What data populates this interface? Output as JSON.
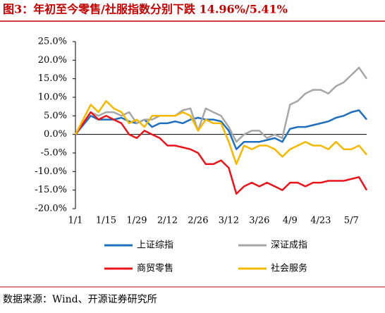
{
  "chart_data": {
    "type": "line",
    "title": "图3：年初至今零售/社服指数分别下跌 14.96%/5.41%",
    "source": "数据来源：Wind、开源证券研究所",
    "categories": [
      "1/1",
      null,
      null,
      null,
      "1/15",
      null,
      null,
      null,
      "1/29",
      null,
      null,
      null,
      "2/12",
      null,
      null,
      null,
      "2/26",
      null,
      null,
      null,
      "3/12",
      null,
      null,
      null,
      "3/26",
      null,
      null,
      null,
      "4/9",
      null,
      null,
      null,
      "4/23",
      null,
      null,
      null,
      "5/7",
      null,
      null
    ],
    "ylim": [
      -20,
      25
    ],
    "yticks": [
      {
        "value": -20,
        "label": "-20.0%"
      },
      {
        "value": -15,
        "label": "-15.0%"
      },
      {
        "value": -10,
        "label": "-10.0%"
      },
      {
        "value": -5,
        "label": "-5.0%"
      },
      {
        "value": 0,
        "label": "0.0%"
      },
      {
        "value": 5,
        "label": "5.0%"
      },
      {
        "value": 10,
        "label": "10.0%"
      },
      {
        "value": 15,
        "label": "15.0%"
      },
      {
        "value": 20,
        "label": "20.0%"
      },
      {
        "value": 25,
        "label": "25.0%"
      }
    ],
    "series": [
      {
        "name": "上证综指",
        "color": "#1f6fbf",
        "values": [
          0,
          2.5,
          5,
          4,
          4,
          4,
          4.5,
          3.5,
          3,
          4,
          2,
          3,
          3,
          3.5,
          3,
          4,
          4.5,
          4,
          4,
          3.5,
          1,
          -4,
          -2,
          -2,
          -2,
          -1.5,
          -1,
          -2,
          1.5,
          2,
          2,
          2.5,
          3,
          3.5,
          4.5,
          5,
          6,
          6.5,
          4
        ]
      },
      {
        "name": "深证成指",
        "color": "#a6a6a6",
        "values": [
          0,
          3,
          6,
          5,
          6,
          6,
          5,
          6,
          3,
          4,
          4,
          5,
          5,
          5,
          6.5,
          7,
          1,
          7,
          6,
          5,
          2,
          -2,
          0,
          1,
          1,
          -1,
          0,
          -1,
          8,
          9,
          11,
          12,
          12,
          11,
          13,
          14,
          16,
          18,
          15
        ]
      },
      {
        "name": "商贸零售",
        "color": "#e8141b",
        "values": [
          0,
          3,
          6,
          4,
          5,
          4,
          3,
          0,
          -1,
          1,
          0,
          -1,
          -3,
          -3,
          -3.5,
          -4,
          -5,
          -8,
          -8,
          -7,
          -9,
          -16,
          -14,
          -13,
          -14,
          -13,
          -14,
          -15,
          -13,
          -13,
          -14,
          -13,
          -13,
          -12.5,
          -12.5,
          -12.5,
          -12,
          -11.5,
          -15
        ]
      },
      {
        "name": "社会服务",
        "color": "#f5b800",
        "values": [
          0,
          4,
          8,
          6,
          9,
          7,
          6,
          3,
          4,
          2,
          5,
          5,
          5,
          5,
          6,
          5,
          1,
          4,
          3,
          3,
          -2,
          -8,
          -3,
          -4,
          -3,
          -3,
          -4,
          -6,
          -4,
          -3,
          -2,
          -3,
          -3,
          -4,
          -2,
          -4,
          -4,
          -3,
          -5.5
        ]
      }
    ]
  }
}
